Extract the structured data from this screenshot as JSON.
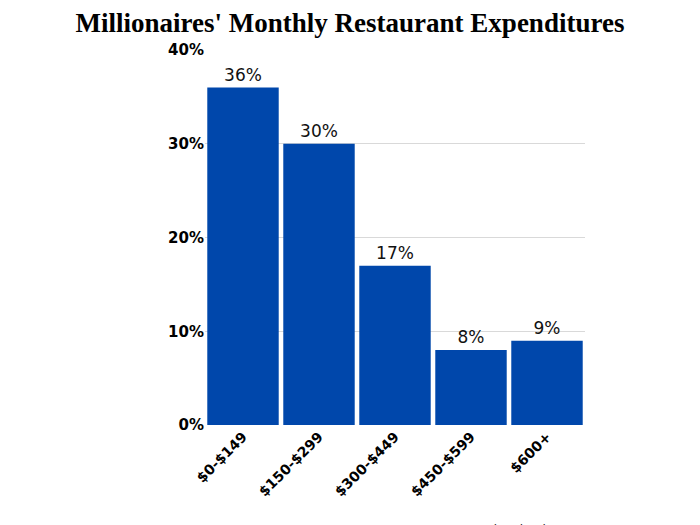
{
  "chart_data": {
    "type": "bar",
    "title": "Millionaires' Monthly Restaurant Expenditures",
    "categories": [
      "$0-$149",
      "$150-$299",
      "$300-$449",
      "$450-$599",
      "$600+"
    ],
    "values": [
      36,
      30,
      17,
      8,
      9
    ],
    "value_labels": [
      "36%",
      "30%",
      "17%",
      "8%",
      "9%"
    ],
    "color": "#0047ab",
    "ylim": [
      0,
      40
    ],
    "yticks": [
      {
        "value": 0,
        "label": "0%"
      },
      {
        "value": 10,
        "label": "10%"
      },
      {
        "value": 20,
        "label": "20%"
      },
      {
        "value": 30,
        "label": "30%"
      },
      {
        "value": 40,
        "label": "40%"
      }
    ],
    "grid": true,
    "data_labels": true,
    "annotations": [
      "www.pathtosimple.com"
    ]
  }
}
